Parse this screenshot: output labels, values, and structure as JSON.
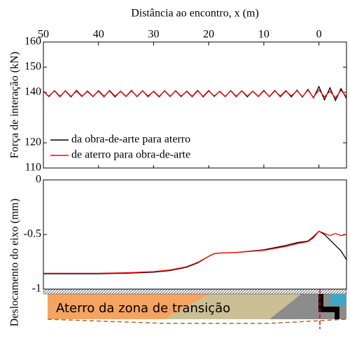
{
  "chart_data": [
    {
      "type": "line",
      "xlabel": "Distância ao encontro, x (m)",
      "ylabel": "Força de interação (kN)",
      "xlim": [
        50,
        -5
      ],
      "xticks": [
        50,
        40,
        30,
        20,
        10,
        0
      ],
      "ylim": [
        110,
        160
      ],
      "yticks": [
        110,
        120,
        140,
        150,
        160
      ],
      "legend": "lower-left",
      "x": [
        50,
        49,
        48,
        47,
        46,
        45,
        44,
        43,
        42,
        41,
        40,
        39,
        38,
        37,
        36,
        35,
        34,
        33,
        32,
        31,
        30,
        29,
        28,
        27,
        26,
        25,
        24,
        23,
        22,
        21,
        20,
        19,
        18,
        17,
        16,
        15,
        14,
        13,
        12,
        11,
        10,
        9,
        8,
        7,
        6,
        5,
        4,
        3,
        2,
        1,
        0,
        -1,
        -2,
        -3,
        -4,
        -5
      ],
      "series": [
        {
          "name": "da obra-de-arte para aterro",
          "color": "#000000",
          "values": [
            140.5,
            138.3,
            140.7,
            138.4,
            140.6,
            138.2,
            140.8,
            138.5,
            140.4,
            138.3,
            140.7,
            138.4,
            140.6,
            138.2,
            140.5,
            138.4,
            140.8,
            138.3,
            140.6,
            138.5,
            140.4,
            138.2,
            140.7,
            138.4,
            140.6,
            138.3,
            140.5,
            138.4,
            140.8,
            138.2,
            140.6,
            138.5,
            140.4,
            138.3,
            140.7,
            138.4,
            140.6,
            138.2,
            140.5,
            138.4,
            140.8,
            138.3,
            140.6,
            138.5,
            140.7,
            138.2,
            140.9,
            138.1,
            141.2,
            137.8,
            142.3,
            137.0,
            141.8,
            136.8,
            141.5,
            137.6
          ]
        },
        {
          "name": "de aterro para obra-de-arte",
          "color": "#ff0000",
          "values": [
            140.3,
            138.5,
            140.6,
            138.2,
            140.7,
            138.4,
            140.5,
            138.3,
            140.6,
            138.4,
            140.5,
            138.2,
            140.8,
            138.5,
            140.4,
            138.3,
            140.6,
            138.4,
            140.7,
            138.2,
            140.5,
            138.4,
            140.6,
            138.3,
            140.7,
            138.5,
            140.4,
            138.2,
            140.6,
            138.4,
            140.8,
            138.3,
            140.5,
            138.4,
            140.6,
            138.2,
            140.7,
            138.5,
            140.4,
            138.3,
            140.6,
            138.4,
            140.8,
            138.2,
            140.5,
            138.6,
            140.7,
            138.3,
            140.9,
            138.0,
            141.0,
            138.2,
            140.5,
            137.8,
            140.8,
            138.4
          ]
        }
      ]
    },
    {
      "type": "line",
      "ylabel": "Deslocamento do eixo (mm)",
      "xlim": [
        50,
        -5
      ],
      "ylim": [
        -1,
        0
      ],
      "yticks": [
        -1,
        -0.5,
        0
      ],
      "x": [
        50,
        45,
        40,
        35,
        30,
        27,
        24,
        22,
        20,
        19,
        18,
        15,
        10,
        6,
        4,
        2,
        1,
        0,
        -1,
        -2,
        -3,
        -4,
        -5
      ],
      "series": [
        {
          "name": "da obra-de-arte para aterro",
          "color": "#000000",
          "values": [
            -0.86,
            -0.86,
            -0.86,
            -0.855,
            -0.845,
            -0.83,
            -0.8,
            -0.76,
            -0.7,
            -0.675,
            -0.67,
            -0.665,
            -0.64,
            -0.6,
            -0.575,
            -0.56,
            -0.52,
            -0.47,
            -0.5,
            -0.55,
            -0.6,
            -0.65,
            -0.73
          ]
        },
        {
          "name": "de aterro para obra-de-arte",
          "color": "#ff0000",
          "values": [
            -0.855,
            -0.855,
            -0.855,
            -0.85,
            -0.84,
            -0.825,
            -0.795,
            -0.755,
            -0.7,
            -0.675,
            -0.67,
            -0.665,
            -0.645,
            -0.61,
            -0.585,
            -0.565,
            -0.53,
            -0.47,
            -0.49,
            -0.51,
            -0.49,
            -0.51,
            -0.5
          ]
        }
      ]
    }
  ],
  "schematic": {
    "label": "Aterro da zona de transição"
  }
}
